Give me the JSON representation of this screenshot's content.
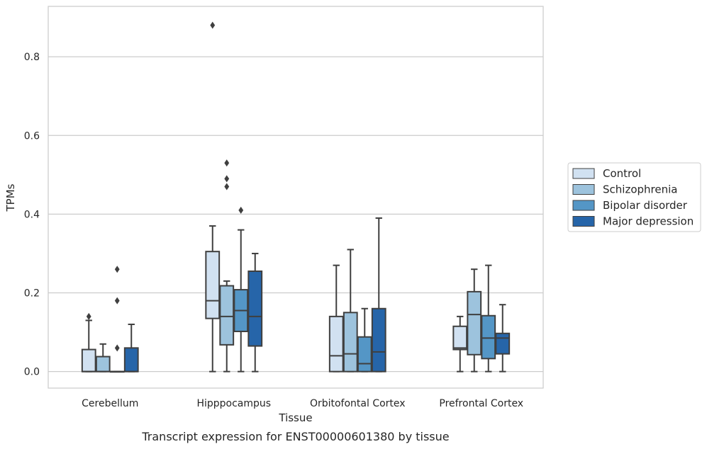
{
  "caption": "Transcript expression for ENST00000601380 by tissue",
  "chart_data": {
    "type": "box",
    "title": "",
    "xlabel": "Tissue",
    "ylabel": "TPMs",
    "ylim": [
      -0.042,
      0.928
    ],
    "y_ticks": [
      0.0,
      0.2,
      0.4,
      0.6,
      0.8
    ],
    "y_tick_labels": [
      "0.0",
      "0.2",
      "0.4",
      "0.6",
      "0.8"
    ],
    "grid": "horizontal",
    "legend_position": "right",
    "categories": [
      "Cerebellum",
      "Hipppocampus",
      "Orbitofontal Cortex",
      "Prefrontal Cortex"
    ],
    "series": [
      {
        "name": "Control",
        "color": "#d1e1f1",
        "boxes": [
          {
            "whisker_low": 0.0,
            "q1": 0.0,
            "median": 0.0,
            "q3": 0.056,
            "whisker_high": 0.13,
            "outliers": [
              0.14
            ]
          },
          {
            "whisker_low": 0.0,
            "q1": 0.135,
            "median": 0.18,
            "q3": 0.305,
            "whisker_high": 0.37,
            "outliers": [
              0.88
            ]
          },
          {
            "whisker_low": 0.0,
            "q1": 0.0,
            "median": 0.04,
            "q3": 0.14,
            "whisker_high": 0.27,
            "outliers": []
          },
          {
            "whisker_low": 0.0,
            "q1": 0.056,
            "median": 0.06,
            "q3": 0.115,
            "whisker_high": 0.14,
            "outliers": []
          }
        ]
      },
      {
        "name": "Schizophrenia",
        "color": "#9dc3dd",
        "boxes": [
          {
            "whisker_low": 0.0,
            "q1": 0.0,
            "median": 0.0,
            "q3": 0.038,
            "whisker_high": 0.07,
            "outliers": []
          },
          {
            "whisker_low": 0.0,
            "q1": 0.068,
            "median": 0.14,
            "q3": 0.218,
            "whisker_high": 0.23,
            "outliers": [
              0.47,
              0.49,
              0.53
            ]
          },
          {
            "whisker_low": 0.0,
            "q1": 0.0,
            "median": 0.045,
            "q3": 0.15,
            "whisker_high": 0.31,
            "outliers": []
          },
          {
            "whisker_low": 0.0,
            "q1": 0.043,
            "median": 0.145,
            "q3": 0.203,
            "whisker_high": 0.26,
            "outliers": []
          }
        ]
      },
      {
        "name": "Bipolar disorder",
        "color": "#5496c6",
        "boxes": [
          {
            "whisker_low": 0.0,
            "q1": 0.0,
            "median": 0.0,
            "q3": 0.0,
            "whisker_high": 0.0,
            "outliers": [
              0.06,
              0.18,
              0.26
            ]
          },
          {
            "whisker_low": 0.0,
            "q1": 0.102,
            "median": 0.155,
            "q3": 0.208,
            "whisker_high": 0.36,
            "outliers": [
              0.41
            ]
          },
          {
            "whisker_low": 0.0,
            "q1": 0.0,
            "median": 0.02,
            "q3": 0.088,
            "whisker_high": 0.16,
            "outliers": []
          },
          {
            "whisker_low": 0.0,
            "q1": 0.033,
            "median": 0.085,
            "q3": 0.142,
            "whisker_high": 0.27,
            "outliers": []
          }
        ]
      },
      {
        "name": "Major depression",
        "color": "#2665a9",
        "boxes": [
          {
            "whisker_low": 0.0,
            "q1": 0.0,
            "median": 0.0,
            "q3": 0.06,
            "whisker_high": 0.12,
            "outliers": []
          },
          {
            "whisker_low": 0.0,
            "q1": 0.065,
            "median": 0.14,
            "q3": 0.255,
            "whisker_high": 0.3,
            "outliers": []
          },
          {
            "whisker_low": 0.0,
            "q1": 0.0,
            "median": 0.05,
            "q3": 0.16,
            "whisker_high": 0.39,
            "outliers": []
          },
          {
            "whisker_low": 0.0,
            "q1": 0.045,
            "median": 0.085,
            "q3": 0.097,
            "whisker_high": 0.17,
            "outliers": []
          }
        ]
      }
    ]
  }
}
